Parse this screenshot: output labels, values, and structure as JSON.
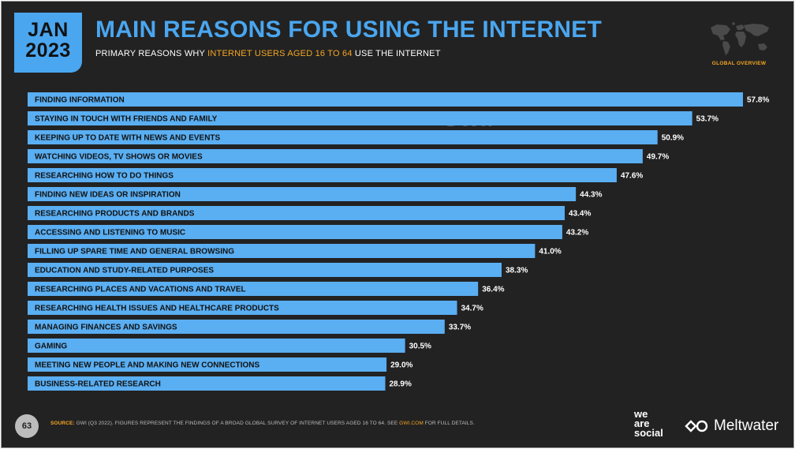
{
  "header": {
    "date_month": "JAN",
    "date_year": "2023",
    "title": "MAIN REASONS FOR USING THE INTERNET",
    "subtitle_pre": "PRIMARY REASONS WHY ",
    "subtitle_highlight": "INTERNET USERS AGED 16 TO 64",
    "subtitle_post": " USE THE INTERNET",
    "overview_label": "GLOBAL OVERVIEW",
    "map_icon": "world-map-icon"
  },
  "watermark": {
    "left": "DATAREPORTAL",
    "right": "GWI."
  },
  "footer": {
    "page_number": "63",
    "source_label": "SOURCE:",
    "source_text": " GWI (Q3 2022). FIGURES REPRESENT THE FINDINGS OF A BROAD GLOBAL SURVEY OF INTERNET USERS AGED 16 TO 64. SEE ",
    "source_link": "GWI.COM",
    "source_tail": " FOR FULL DETAILS.",
    "logo_line1": "we",
    "logo_line2": "are",
    "logo_line3": "social",
    "partner_logo": "Meltwater"
  },
  "colors": {
    "background": "#222222",
    "accent_blue": "#4aa6ef",
    "bar": "#5aaef2",
    "highlight": "#f5a623",
    "text": "#ffffff"
  },
  "chart_data": {
    "type": "bar",
    "orientation": "horizontal",
    "categories": [
      "FINDING INFORMATION",
      "STAYING IN TOUCH WITH FRIENDS AND FAMILY",
      "KEEPING UP TO DATE WITH NEWS AND EVENTS",
      "WATCHING VIDEOS, TV SHOWS OR MOVIES",
      "RESEARCHING HOW TO DO THINGS",
      "FINDING NEW IDEAS OR INSPIRATION",
      "RESEARCHING PRODUCTS AND BRANDS",
      "ACCESSING AND LISTENING TO MUSIC",
      "FILLING UP SPARE TIME AND GENERAL BROWSING",
      "EDUCATION AND STUDY-RELATED PURPOSES",
      "RESEARCHING PLACES AND VACATIONS AND TRAVEL",
      "RESEARCHING HEALTH ISSUES AND HEALTHCARE PRODUCTS",
      "MANAGING FINANCES AND SAVINGS",
      "GAMING",
      "MEETING NEW PEOPLE AND MAKING NEW CONNECTIONS",
      "BUSINESS-RELATED RESEARCH"
    ],
    "values": [
      57.8,
      53.7,
      50.9,
      49.7,
      47.6,
      44.3,
      43.4,
      43.2,
      41.0,
      38.3,
      36.4,
      34.7,
      33.7,
      30.5,
      29.0,
      28.9
    ],
    "value_labels": [
      "57.8%",
      "53.7%",
      "50.9%",
      "49.7%",
      "47.6%",
      "44.3%",
      "43.4%",
      "43.2%",
      "41.0%",
      "38.3%",
      "36.4%",
      "34.7%",
      "33.7%",
      "30.5%",
      "29.0%",
      "28.9%"
    ],
    "unit": "%",
    "xlim": [
      0,
      57.8
    ],
    "grid": false,
    "legend": "none",
    "title": "MAIN REASONS FOR USING THE INTERNET"
  }
}
